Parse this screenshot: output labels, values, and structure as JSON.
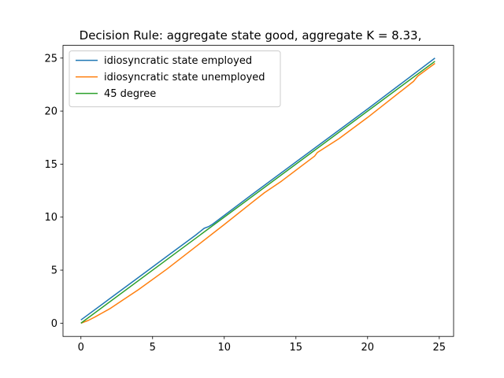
{
  "chart_data": {
    "type": "line",
    "title": "Decision Rule: aggregate state good, aggregate K = 8.33,",
    "xlabel": "",
    "ylabel": "",
    "xlim": [
      -1.25,
      26.0
    ],
    "ylim": [
      -1.25,
      26.2
    ],
    "xticks": [
      0,
      5,
      10,
      15,
      20,
      25
    ],
    "yticks": [
      0,
      5,
      10,
      15,
      20,
      25
    ],
    "grid": false,
    "legend_position": "upper-left",
    "series": [
      {
        "name": "idiosyncratic state employed",
        "color": "#1f77b4",
        "x": [
          0,
          2,
          4,
          6,
          8,
          8.6,
          8.9,
          9.2,
          12,
          16,
          20,
          24.7
        ],
        "y": [
          0.3,
          2.3,
          4.3,
          6.3,
          8.3,
          8.95,
          9.1,
          9.35,
          12.2,
          16.2,
          20.2,
          25.0
        ]
      },
      {
        "name": "idiosyncratic state unemployed",
        "color": "#ff7f0e",
        "x": [
          0,
          0.5,
          1,
          2,
          4,
          6,
          8,
          10,
          12,
          12.8,
          14,
          16.3,
          16.5,
          18,
          20,
          23.2,
          23.5,
          24.7
        ],
        "y": [
          0.0,
          0.25,
          0.6,
          1.35,
          3.15,
          5.1,
          7.2,
          9.3,
          11.45,
          12.3,
          13.4,
          15.75,
          16.1,
          17.4,
          19.4,
          22.8,
          23.3,
          24.5
        ]
      },
      {
        "name": "45 degree",
        "color": "#2ca02c",
        "x": [
          0,
          24.7
        ],
        "y": [
          0,
          24.7
        ]
      }
    ]
  }
}
